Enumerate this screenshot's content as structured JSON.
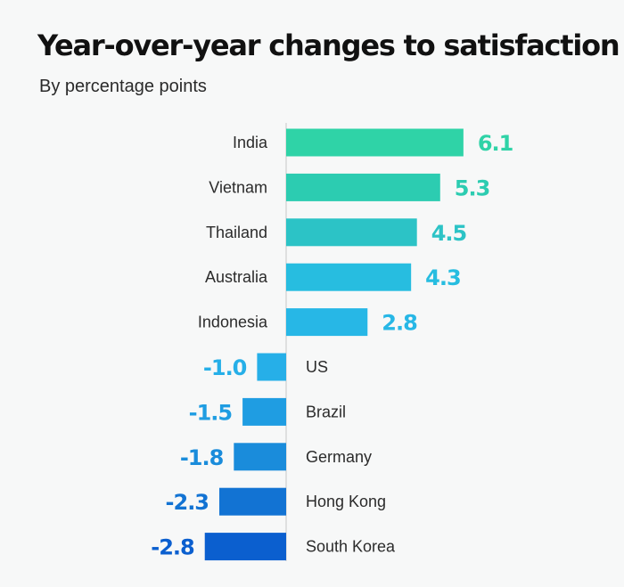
{
  "title": "Year-over-year changes to satisfaction",
  "subtitle": "By percentage points",
  "chart_data": {
    "type": "bar",
    "orientation": "horizontal",
    "title": "Year-over-year changes to satisfaction",
    "subtitle": "By percentage points",
    "categories": [
      "India",
      "Vietnam",
      "Thailand",
      "Australia",
      "Indonesia",
      "US",
      "Brazil",
      "Germany",
      "Hong Kong",
      "South Korea"
    ],
    "values": [
      6.1,
      5.3,
      4.5,
      4.3,
      2.8,
      -1.0,
      -1.5,
      -1.8,
      -2.3,
      -2.8
    ],
    "value_labels": [
      "6.1",
      "5.3",
      "4.5",
      "4.3",
      "2.8",
      "-1.0",
      "-1.5",
      "-1.8",
      "-2.3",
      "-2.8"
    ],
    "colors": [
      "#2fd3a7",
      "#2cccb1",
      "#2cc3c6",
      "#27bde0",
      "#27b7e6",
      "#26afe8",
      "#1f9de2",
      "#1a8cdb",
      "#1273d3",
      "#0b5fcf"
    ],
    "axis_line": true,
    "grid": false,
    "legend": "none"
  }
}
